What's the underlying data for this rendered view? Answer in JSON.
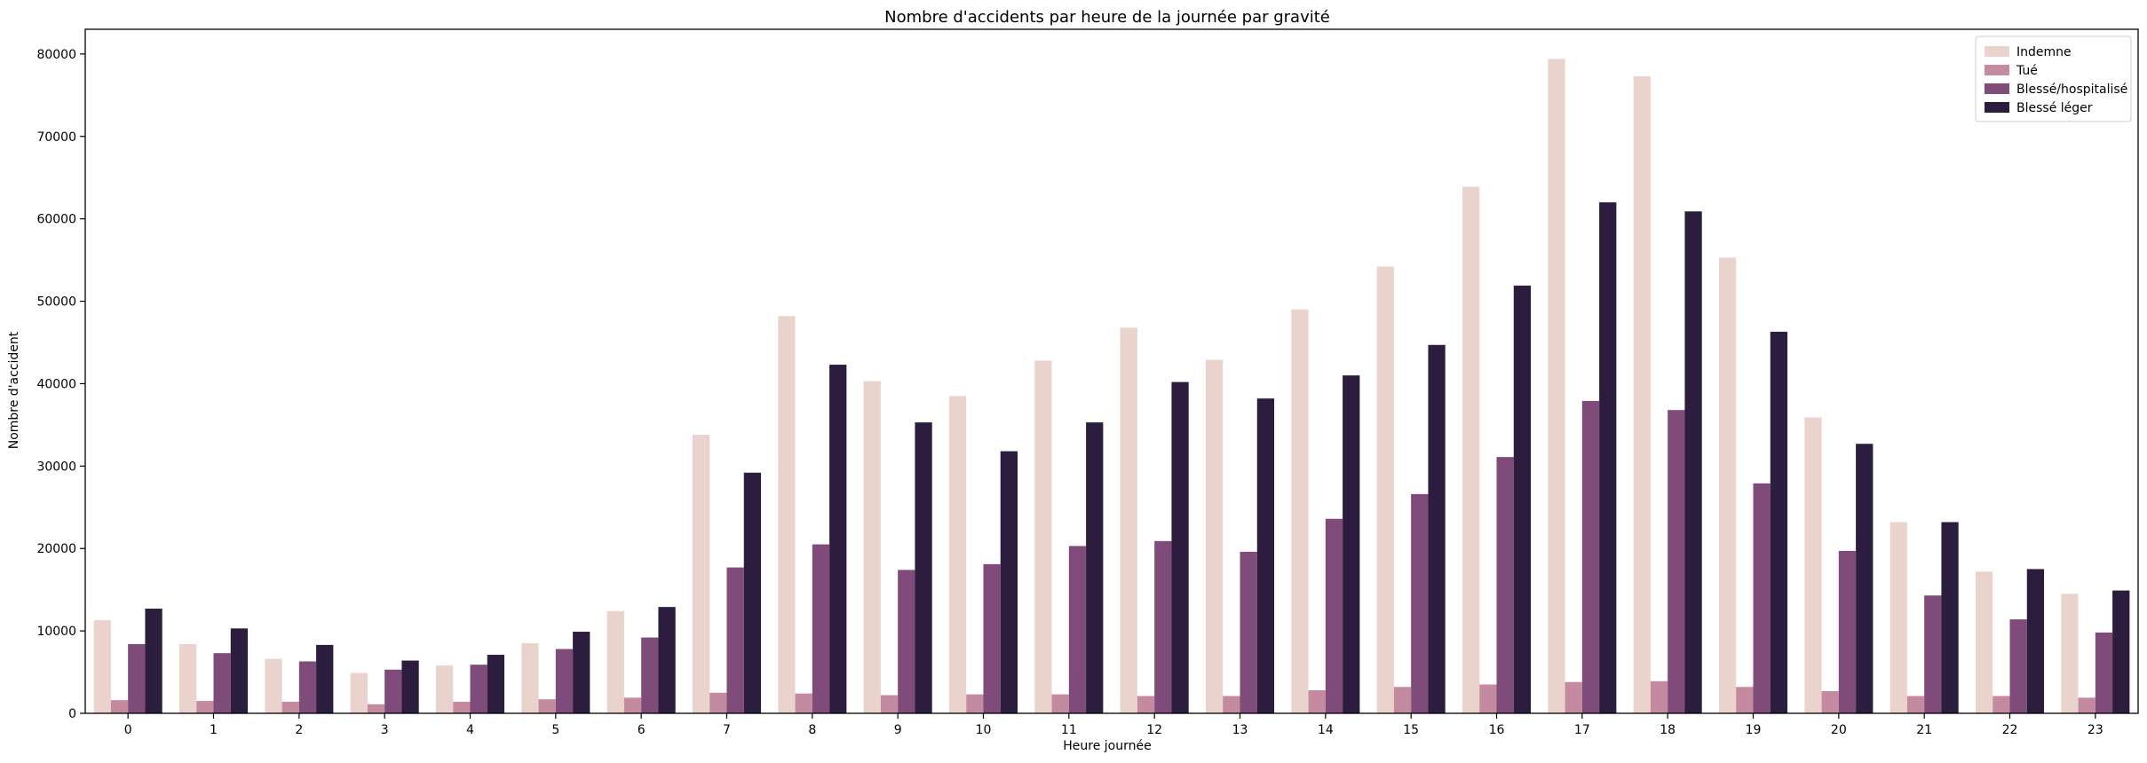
{
  "chart_data": {
    "type": "bar",
    "title": "Nombre d'accidents par heure de la journée par gravité",
    "xlabel": "Heure journée",
    "ylabel": "Nombre d'accident",
    "categories": [
      "0",
      "1",
      "2",
      "3",
      "4",
      "5",
      "6",
      "7",
      "8",
      "9",
      "10",
      "11",
      "12",
      "13",
      "14",
      "15",
      "16",
      "17",
      "18",
      "19",
      "20",
      "21",
      "22",
      "23"
    ],
    "ylim": [
      0,
      83000
    ],
    "yticks": [
      0,
      10000,
      20000,
      30000,
      40000,
      50000,
      60000,
      70000,
      80000
    ],
    "ytick_labels": [
      "0",
      "10000",
      "20000",
      "30000",
      "40000",
      "50000",
      "60000",
      "70000",
      "80000"
    ],
    "grid": false,
    "legend_position": "top-right",
    "series": [
      {
        "name": "Indemne",
        "color": "#ebd3cd",
        "values": [
          11300,
          8400,
          6600,
          4900,
          5800,
          8500,
          12400,
          33800,
          48200,
          40300,
          38500,
          42800,
          46800,
          42900,
          49000,
          54200,
          63900,
          79400,
          77300,
          55300,
          35900,
          23200,
          17200,
          14500
        ]
      },
      {
        "name": "Tué",
        "color": "#c48a9f",
        "values": [
          1600,
          1500,
          1400,
          1100,
          1400,
          1700,
          1900,
          2500,
          2400,
          2200,
          2300,
          2300,
          2100,
          2100,
          2800,
          3200,
          3500,
          3800,
          3900,
          3200,
          2700,
          2100,
          2100,
          1900
        ]
      },
      {
        "name": "Blessé/hospitalisé",
        "color": "#7e4b7a",
        "values": [
          8400,
          7300,
          6300,
          5300,
          5900,
          7800,
          9200,
          17700,
          20500,
          17400,
          18100,
          20300,
          20900,
          19600,
          23600,
          26600,
          31100,
          37900,
          36800,
          27900,
          19700,
          14300,
          11400,
          9800
        ]
      },
      {
        "name": "Blessé léger",
        "color": "#2c1d3f",
        "values": [
          12700,
          10300,
          8300,
          6400,
          7100,
          9900,
          12900,
          29200,
          42300,
          35300,
          31800,
          35300,
          40200,
          38200,
          41000,
          44700,
          51900,
          62000,
          60900,
          46300,
          32700,
          23200,
          17500,
          14900
        ]
      }
    ]
  }
}
